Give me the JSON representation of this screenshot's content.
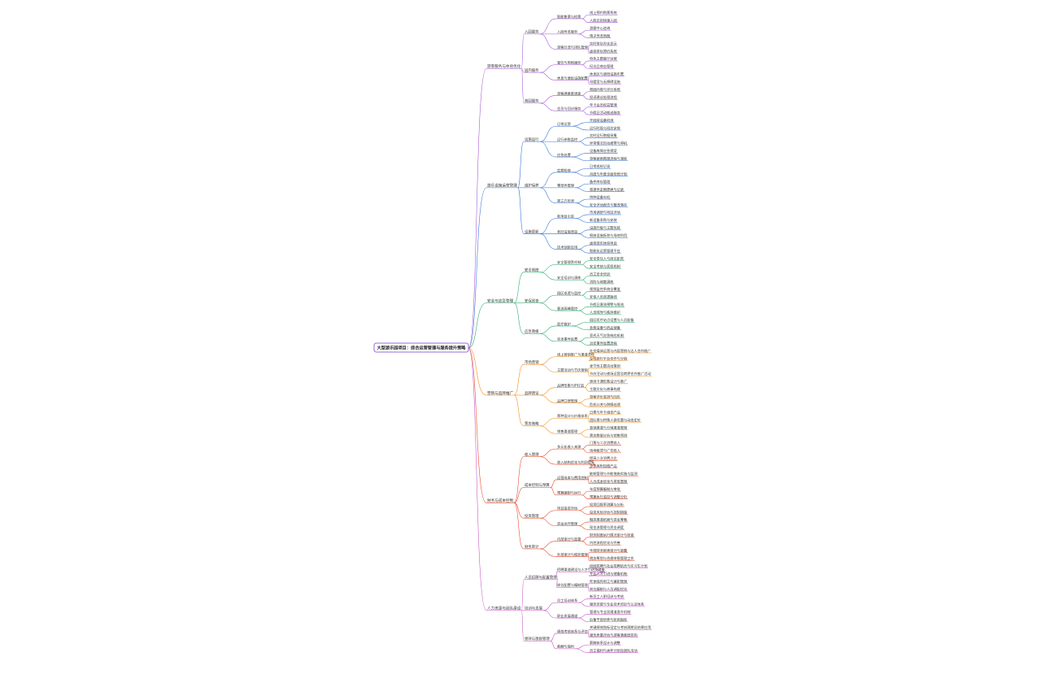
{
  "root": {
    "label": "大型游乐园项目：综合运营管理与服务提升策略",
    "color": "#7a3ed1"
  },
  "branches": [
    {
      "label": "游客服务与体验优化",
      "color": "#a050d8",
      "children": [
        {
          "label": "入园服务",
          "children": [
            {
              "label": "智能售票与检票",
              "children": [
                "线上预约购票系统",
                "人脸识别快速入园"
              ]
            },
            {
              "label": "入园导览服务",
              "children": [
                "游客中心咨询",
                "电子导览地图"
              ]
            },
            {
              "label": "游客分流与排队管理",
              "children": [
                "实时排队时长显示",
                "虚拟排队预约系统"
              ]
            }
          ]
        },
        {
          "label": "园内服务",
          "children": [
            {
              "label": "餐饮与购物服务",
              "children": [
                "特色主题餐厅运营",
                "纪念品商店管理"
              ]
            },
            {
              "label": "休息与便民设施配置",
              "children": [
                "休息区与遮阳设施布置",
                "母婴室与无障碍设施"
              ]
            }
          ]
        },
        {
          "label": "离园服务",
          "children": [
            {
              "label": "游客满意度调查",
              "children": [
                "离园问卷与评分系统",
                "投诉建议处理流程"
              ]
            },
            {
              "label": "会员与回访服务",
              "children": [
                "年卡会员权益管理",
                "节假日活动推送服务"
              ]
            }
          ]
        }
      ]
    },
    {
      "label": "游乐设施运营管理",
      "color": "#2f6fd6",
      "children": [
        {
          "label": "设施运行",
          "children": [
            {
              "label": "日常运营",
              "children": [
                "开园前设备检测",
                "运行时段与班次安排"
              ]
            },
            {
              "label": "运行参数监控",
              "children": [
                "实时运行数据采集",
                "异常情况自动报警与停机"
              ]
            },
            {
              "label": "应急处置",
              "children": [
                "设备故障应急预案",
                "游客被困救援流程与演练"
              ]
            }
          ]
        },
        {
          "label": "维护保养",
          "children": [
            {
              "label": "定期检修",
              "children": [
                "日常巡检记录",
                "月度与年度全面检修计划"
              ]
            },
            {
              "label": "零部件管理",
              "children": [
                "备件库存管理",
                "易损件定期更换与记录"
              ]
            },
            {
              "label": "第三方检测",
              "children": [
                "特种设备年检",
                "安全评估报告与整改落实"
              ]
            }
          ]
        },
        {
          "label": "设施更新",
          "children": [
            {
              "label": "新项目引进",
              "children": [
                "市场调研与项目评估",
                "新设备采购与安装"
              ]
            },
            {
              "label": "老旧设施改造",
              "children": [
                "设施升级与主题包装",
                "报废设施拆除与场地利用"
              ]
            },
            {
              "label": "技术创新应用",
              "children": [
                "虚拟现实体验项目",
                "智能化运营管理平台"
              ]
            }
          ]
        }
      ]
    },
    {
      "label": "安全与应急管理",
      "color": "#22a968",
      "children": [
        {
          "label": "安全制度",
          "children": [
            {
              "label": "安全管理责任制",
              "children": [
                "安全责任人与岗位职责",
                "安全考核与奖惩机制"
              ]
            },
            {
              "label": "安全培训与演练",
              "children": [
                "员工安全培训",
                "消防与疏散演练"
              ]
            }
          ]
        },
        {
          "label": "安保巡查",
          "children": [
            {
              "label": "园区巡逻与监控",
              "children": [
                "视频监控系统全覆盖",
                "安保人员巡逻路线"
              ]
            },
            {
              "label": "客流高峰管控",
              "children": [
                "节假日客流预警与限流",
                "人员疏导与秩序维护"
              ]
            }
          ]
        },
        {
          "label": "应急救援",
          "children": [
            {
              "label": "医疗救护",
              "children": [
                "园区医疗站点设置与人员配备",
                "急救设备与药品储备"
              ]
            },
            {
              "label": "突发事件处置",
              "children": [
                "恶劣天气应急响应机制",
                "治安事件处置流程"
              ]
            }
          ]
        }
      ]
    },
    {
      "label": "营销与品牌推广",
      "color": "#f08a0c",
      "children": [
        {
          "label": "市场营销",
          "children": [
            {
              "label": "线上营销推广与渠道合作",
              "children": [
                "社交媒体运营与内容营销与达人合作推广",
                "在线旅行平台合作与分销"
              ]
            },
            {
              "label": "主题活动与节庆营销",
              "children": [
                "季节性主题活动策划",
                "节庆活动与夜场运营及跨界合作推广活动"
              ]
            }
          ]
        },
        {
          "label": "品牌建设",
          "children": [
            {
              "label": "品牌形象与IP打造",
              "children": [
                "原创卡通形象设计与推广",
                "主题文化与故事构建"
              ]
            },
            {
              "label": "品牌口碑管理",
              "children": [
                "游客评价监测与回应",
                "危机公关与舆情处理"
              ]
            }
          ]
        },
        {
          "label": "票务策略",
          "children": [
            {
              "label": "票种设计与价格体系",
              "children": [
                "日票与年卡组合产品",
                "团队票与特殊人群优惠与动态定价"
              ]
            },
            {
              "label": "销售渠道管理",
              "children": [
                "直销渠道与分销渠道管理",
                "票务数据分析与销售预测"
              ]
            }
          ]
        }
      ]
    },
    {
      "label": "财务与成本控制",
      "color": "#e8401c",
      "children": [
        {
          "label": "收入管理",
          "children": [
            {
              "label": "多元化收入来源",
              "children": [
                "门票与二次消费收入",
                "场地租赁与广告收入"
              ]
            },
            {
              "label": "收入结构优化与利润提升",
              "children": [
                "提高二次消费占比",
                "开发高附加值产品"
              ]
            }
          ]
        },
        {
          "label": "成本控制与预算",
          "children": [
            {
              "label": "运营成本与费用控制",
              "children": [
                "能耗管理与节能措施实施与监测",
                "人力成本优化与排班管理"
              ]
            },
            {
              "label": "预算编制与执行",
              "children": [
                "年度预算编制与审批",
                "预算执行监控与调整分析"
              ]
            }
          ]
        },
        {
          "label": "投资管理",
          "children": [
            {
              "label": "项目投资评估",
              "children": [
                "投资回报率测算与分析",
                "投资风险评估与控制措施"
              ]
            },
            {
              "label": "资金运作管理",
              "children": [
                "融资渠道拓展与资金筹集",
                "现金流管理与资金调度"
              ]
            }
          ]
        },
        {
          "label": "财务审计",
          "children": [
            {
              "label": "内部审计与监督",
              "children": [
                "财务制度执行情况审计与检查",
                "内控流程优化与完善"
              ]
            },
            {
              "label": "外部审计与税务管理",
              "children": [
                "年度财务报表审计与披露",
                "税务筹划与合规申报管理工作"
              ]
            }
          ]
        }
      ]
    },
    {
      "label": "人力资源与团队建设",
      "color": "#c84dc4",
      "children": [
        {
          "label": "人员招聘与配置管理",
          "children": [
            {
              "label": "招聘渠道建设与人才引进及储备",
              "children": [
                "校园招聘与社会招聘结合与实习生计划",
                "专业人才引进与储备机制"
              ]
            },
            {
              "label": "岗位配置与编制管理",
              "children": [
                "旺季临时用工与兼职管理",
                "岗位编制与人员调配优化"
              ]
            }
          ]
        },
        {
          "label": "培训与发展",
          "children": [
            {
              "label": "员工培训体系",
              "children": [
                "新员工入职培训与考核",
                "服务技能与专业技术培训与认证体系"
              ]
            },
            {
              "label": "职业发展通道",
              "children": [
                "管理与专业双通道晋升机制",
                "后备干部培养与轮岗锻炼"
              ]
            }
          ]
        },
        {
          "label": "绩效与激励管理",
          "children": [
            {
              "label": "绩效考核体系与评估",
              "children": [
                "关键绩效指标设定与考核周期及结果应用",
                "服务质量评估与游客满意度挂钩"
              ]
            },
            {
              "label": "薪酬与福利",
              "children": [
                "薪酬体系设计与调整",
                "员工福利与关怀计划及团队活动"
              ]
            }
          ]
        }
      ]
    }
  ]
}
